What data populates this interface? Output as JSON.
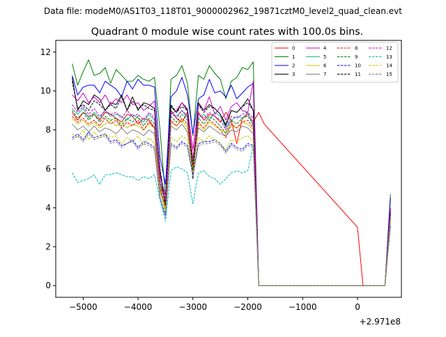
{
  "suptitle": "Data file: modeM0/AS1T03_118T01_9000002962_19871cztM0_level2_quad_clean.evt",
  "chart_data": {
    "type": "line",
    "title": "Quadrant 0 module wise count rates with 100.0s bins.",
    "xlabel": "",
    "ylabel": "",
    "offset_text": "+2.971e8",
    "xlim": [
      -5500,
      800
    ],
    "ylim": [
      -0.6,
      12.6
    ],
    "xticks": [
      -5000,
      -4000,
      -3000,
      -2000,
      -1000,
      0
    ],
    "xtick_labels": [
      "−5000",
      "−4000",
      "−3000",
      "−2000",
      "−1000",
      "0"
    ],
    "yticks": [
      0,
      2,
      4,
      6,
      8,
      10,
      12
    ],
    "ytick_labels": [
      "0",
      "2",
      "4",
      "6",
      "8",
      "10",
      "12"
    ],
    "grid": false,
    "legend_position": "top-right",
    "legend_columns": 4,
    "x": [
      -5200,
      -5100,
      -5000,
      -4900,
      -4800,
      -4700,
      -4600,
      -4500,
      -4400,
      -4300,
      -4200,
      -4100,
      -4000,
      -3900,
      -3800,
      -3700,
      -3600,
      -3500,
      -3400,
      -3300,
      -3200,
      -3100,
      -3000,
      -2900,
      -2800,
      -2700,
      -2600,
      -2500,
      -2400,
      -2300,
      -2200,
      -2100,
      -2000,
      -1900,
      -1800,
      -1700,
      0,
      100,
      200,
      300,
      400,
      500,
      600
    ],
    "gap_after_index": 35,
    "series": [
      {
        "name": "0",
        "color": "#ff0000",
        "dash": "solid",
        "values": [
          8.9,
          8.5,
          8.9,
          8.7,
          8.8,
          8.5,
          8.9,
          8.8,
          8.6,
          8.4,
          8.8,
          8.7,
          8.3,
          8.6,
          8.5,
          8.1,
          5.2,
          4.4,
          9.0,
          8.6,
          8.4,
          8.9,
          6.5,
          8.9,
          8.5,
          8.8,
          8.7,
          8.4,
          8.9,
          8.5,
          7.3,
          8.6,
          8.8,
          8.4,
          8.9,
          8.3,
          3.0,
          0,
          0,
          0,
          0,
          0,
          3.9
        ]
      },
      {
        "name": "1",
        "color": "#008000",
        "dash": "solid",
        "values": [
          11.4,
          10.3,
          11.0,
          11.6,
          10.8,
          10.9,
          11.2,
          10.4,
          11.1,
          10.8,
          10.5,
          10.5,
          10.8,
          10.6,
          10.5,
          10.7,
          8.0,
          4.5,
          10.6,
          10.8,
          11.3,
          10.4,
          7.7,
          10.8,
          10.6,
          11.3,
          10.9,
          10.6,
          9.6,
          10.5,
          10.7,
          11.2,
          11.1,
          11.5,
          0,
          0,
          0,
          0,
          0,
          0,
          0,
          0,
          4.7
        ]
      },
      {
        "name": "2",
        "color": "#0000ff",
        "dash": "solid",
        "values": [
          10.8,
          9.8,
          10.2,
          10.3,
          10.3,
          9.9,
          10.5,
          10.3,
          10.1,
          9.7,
          10.5,
          10.1,
          10.6,
          10.3,
          10.3,
          10.2,
          6.6,
          5.2,
          9.7,
          10.0,
          10.7,
          9.8,
          7.8,
          9.6,
          9.8,
          10.6,
          9.9,
          10.0,
          9.7,
          10.3,
          9.6,
          9.9,
          10.2,
          10.4,
          0,
          0,
          0,
          0,
          0,
          0,
          0,
          0,
          4.5
        ]
      },
      {
        "name": "3",
        "color": "#000000",
        "dash": "solid",
        "values": [
          10.7,
          9.0,
          9.5,
          9.3,
          9.8,
          9.6,
          9.0,
          9.4,
          9.3,
          9.8,
          9.0,
          9.7,
          9.0,
          9.4,
          9.3,
          9.1,
          5.9,
          4.0,
          9.2,
          8.9,
          9.4,
          9.0,
          5.5,
          9.4,
          9.0,
          9.3,
          9.1,
          8.8,
          8.2,
          9.0,
          8.9,
          9.2,
          9.6,
          9.0,
          0,
          0,
          0,
          0,
          0,
          0,
          0,
          0,
          3.8
        ]
      },
      {
        "name": "4",
        "color": "#cc00cc",
        "dash": "solid",
        "values": [
          9.8,
          9.5,
          9.9,
          9.4,
          9.7,
          9.4,
          9.8,
          9.3,
          9.6,
          9.4,
          9.8,
          9.3,
          9.4,
          9.0,
          9.2,
          9.5,
          5.6,
          4.6,
          8.8,
          9.0,
          9.4,
          9.1,
          7.0,
          9.3,
          9.0,
          9.7,
          8.8,
          9.2,
          8.5,
          9.2,
          9.4,
          9.0,
          8.9,
          10.5,
          0,
          0,
          0,
          0,
          0,
          0,
          0,
          0,
          4.0
        ]
      },
      {
        "name": "5",
        "color": "#1ab39a",
        "dash": "solid",
        "values": [
          9.1,
          8.8,
          9.1,
          8.6,
          8.9,
          8.6,
          9.0,
          8.7,
          8.8,
          8.7,
          8.5,
          8.8,
          8.6,
          8.4,
          8.8,
          8.5,
          5.3,
          3.7,
          8.9,
          8.7,
          9.0,
          8.6,
          6.3,
          8.6,
          8.8,
          8.5,
          8.9,
          8.7,
          8.1,
          8.5,
          8.7,
          8.6,
          8.9,
          8.2,
          0,
          0,
          0,
          0,
          0,
          0,
          0,
          0,
          3.6
        ]
      },
      {
        "name": "6",
        "color": "#c8c800",
        "dash": "solid",
        "values": [
          8.6,
          8.3,
          8.5,
          8.2,
          8.4,
          8.1,
          8.3,
          8.5,
          8.2,
          8.4,
          8.1,
          8.3,
          8.2,
          8.0,
          8.3,
          8.1,
          5.1,
          3.9,
          8.4,
          8.2,
          8.5,
          8.1,
          6.1,
          8.3,
          8.0,
          8.4,
          8.2,
          8.0,
          7.9,
          8.2,
          8.1,
          8.4,
          8.3,
          8.0,
          0,
          0,
          0,
          0,
          0,
          0,
          0,
          0,
          3.5
        ]
      },
      {
        "name": "7",
        "color": "#808080",
        "dash": "solid",
        "values": [
          8.3,
          8.0,
          8.2,
          7.9,
          8.2,
          7.9,
          8.1,
          8.0,
          7.8,
          8.1,
          7.8,
          8.0,
          7.9,
          7.7,
          8.0,
          7.8,
          4.9,
          3.8,
          8.2,
          8.0,
          8.3,
          7.9,
          5.9,
          8.1,
          7.9,
          8.2,
          8.0,
          7.8,
          7.7,
          8.0,
          7.9,
          8.2,
          8.1,
          7.8,
          0,
          0,
          0,
          0,
          0,
          0,
          0,
          0,
          3.4
        ]
      },
      {
        "name": "8",
        "color": "#ff0000",
        "dash": "dashed",
        "values": [
          8.7,
          8.4,
          8.6,
          8.3,
          8.5,
          8.2,
          8.6,
          8.3,
          8.5,
          8.1,
          8.4,
          8.2,
          8.5,
          8.0,
          8.4,
          8.1,
          5.0,
          4.1,
          8.5,
          8.2,
          8.6,
          8.3,
          6.2,
          8.4,
          8.1,
          8.5,
          8.3,
          8.0,
          7.6,
          8.3,
          8.1,
          8.4,
          8.5,
          8.1,
          0,
          0,
          0,
          0,
          0,
          0,
          0,
          0,
          3.7
        ]
      },
      {
        "name": "9",
        "color": "#008000",
        "dash": "dashed",
        "values": [
          9.0,
          8.6,
          8.9,
          8.5,
          8.8,
          8.4,
          8.7,
          8.5,
          8.6,
          8.2,
          8.6,
          8.4,
          8.7,
          8.2,
          8.6,
          8.3,
          5.4,
          4.2,
          8.7,
          8.4,
          8.8,
          8.5,
          6.4,
          8.6,
          8.3,
          8.7,
          8.5,
          8.2,
          7.8,
          8.5,
          8.3,
          8.6,
          8.7,
          8.3,
          0,
          0,
          0,
          0,
          0,
          0,
          0,
          0,
          3.8
        ]
      },
      {
        "name": "10",
        "color": "#0000ff",
        "dash": "dashed",
        "values": [
          7.6,
          7.8,
          7.5,
          7.9,
          7.6,
          7.7,
          7.8,
          7.4,
          7.5,
          7.2,
          7.3,
          7.5,
          7.1,
          7.4,
          7.3,
          7.1,
          4.5,
          3.6,
          7.3,
          7.1,
          7.4,
          7.2,
          5.7,
          7.3,
          7.4,
          7.4,
          7.5,
          7.3,
          6.9,
          7.3,
          7.1,
          7.0,
          7.3,
          7.2,
          0,
          0,
          0,
          0,
          0,
          0,
          0,
          0,
          3.1
        ]
      },
      {
        "name": "11",
        "color": "#000000",
        "dash": "dashed",
        "values": [
          10.5,
          9.1,
          9.3,
          9.0,
          9.5,
          9.3,
          9.0,
          9.3,
          9.1,
          9.7,
          9.0,
          9.5,
          9.1,
          9.3,
          9.1,
          9.0,
          6.0,
          4.2,
          9.3,
          8.9,
          9.2,
          9.0,
          5.8,
          9.3,
          8.9,
          9.2,
          9.1,
          8.8,
          8.3,
          9.0,
          8.9,
          9.2,
          9.4,
          9.0,
          0,
          0,
          0,
          0,
          0,
          0,
          0,
          0,
          3.7
        ]
      },
      {
        "name": "12",
        "color": "#cc00cc",
        "dash": "dashed",
        "values": [
          9.3,
          8.9,
          9.2,
          8.8,
          9.1,
          8.7,
          9.0,
          8.8,
          8.9,
          8.6,
          9.0,
          8.7,
          8.8,
          8.5,
          8.9,
          8.6,
          5.4,
          4.3,
          8.9,
          8.6,
          9.0,
          8.7,
          6.5,
          8.8,
          8.6,
          8.9,
          8.7,
          8.5,
          8.0,
          8.7,
          8.6,
          8.8,
          8.9,
          8.6,
          0,
          0,
          0,
          0,
          0,
          0,
          0,
          0,
          3.9
        ]
      },
      {
        "name": "13",
        "color": "#00bfbf",
        "dash": "dashed",
        "values": [
          5.8,
          5.3,
          5.4,
          5.5,
          5.7,
          5.2,
          5.7,
          5.7,
          5.8,
          5.7,
          5.6,
          5.6,
          5.4,
          5.6,
          5.5,
          5.7,
          4.4,
          3.3,
          5.9,
          6.1,
          6.0,
          5.8,
          4.2,
          5.8,
          5.9,
          5.6,
          5.5,
          5.2,
          5.5,
          5.8,
          5.9,
          5.8,
          5.9,
          7.2,
          0,
          0,
          0,
          0,
          0,
          0,
          0,
          0,
          3.2
        ]
      },
      {
        "name": "14",
        "color": "#c8c800",
        "dash": "dashed",
        "values": [
          7.8,
          7.6,
          8.0,
          7.5,
          7.9,
          7.6,
          7.8,
          7.6,
          7.7,
          7.3,
          7.6,
          7.4,
          7.7,
          7.2,
          7.6,
          7.3,
          4.8,
          3.8,
          7.6,
          7.4,
          7.7,
          7.5,
          5.8,
          7.6,
          7.4,
          7.7,
          7.5,
          7.3,
          7.0,
          7.5,
          7.4,
          7.6,
          7.7,
          7.4,
          0,
          0,
          0,
          0,
          0,
          0,
          0,
          0,
          3.4
        ]
      },
      {
        "name": "15",
        "color": "#808080",
        "dash": "dashed",
        "values": [
          7.5,
          7.7,
          7.4,
          7.8,
          7.5,
          7.6,
          7.7,
          7.3,
          7.4,
          7.1,
          7.3,
          7.4,
          7.0,
          7.3,
          7.2,
          7.0,
          4.5,
          3.5,
          7.2,
          7.0,
          7.3,
          7.1,
          5.6,
          7.2,
          7.3,
          7.3,
          7.4,
          7.2,
          6.8,
          7.2,
          7.0,
          6.9,
          7.2,
          7.1,
          0,
          0,
          0,
          0,
          0,
          0,
          0,
          0,
          3.0
        ]
      }
    ]
  }
}
